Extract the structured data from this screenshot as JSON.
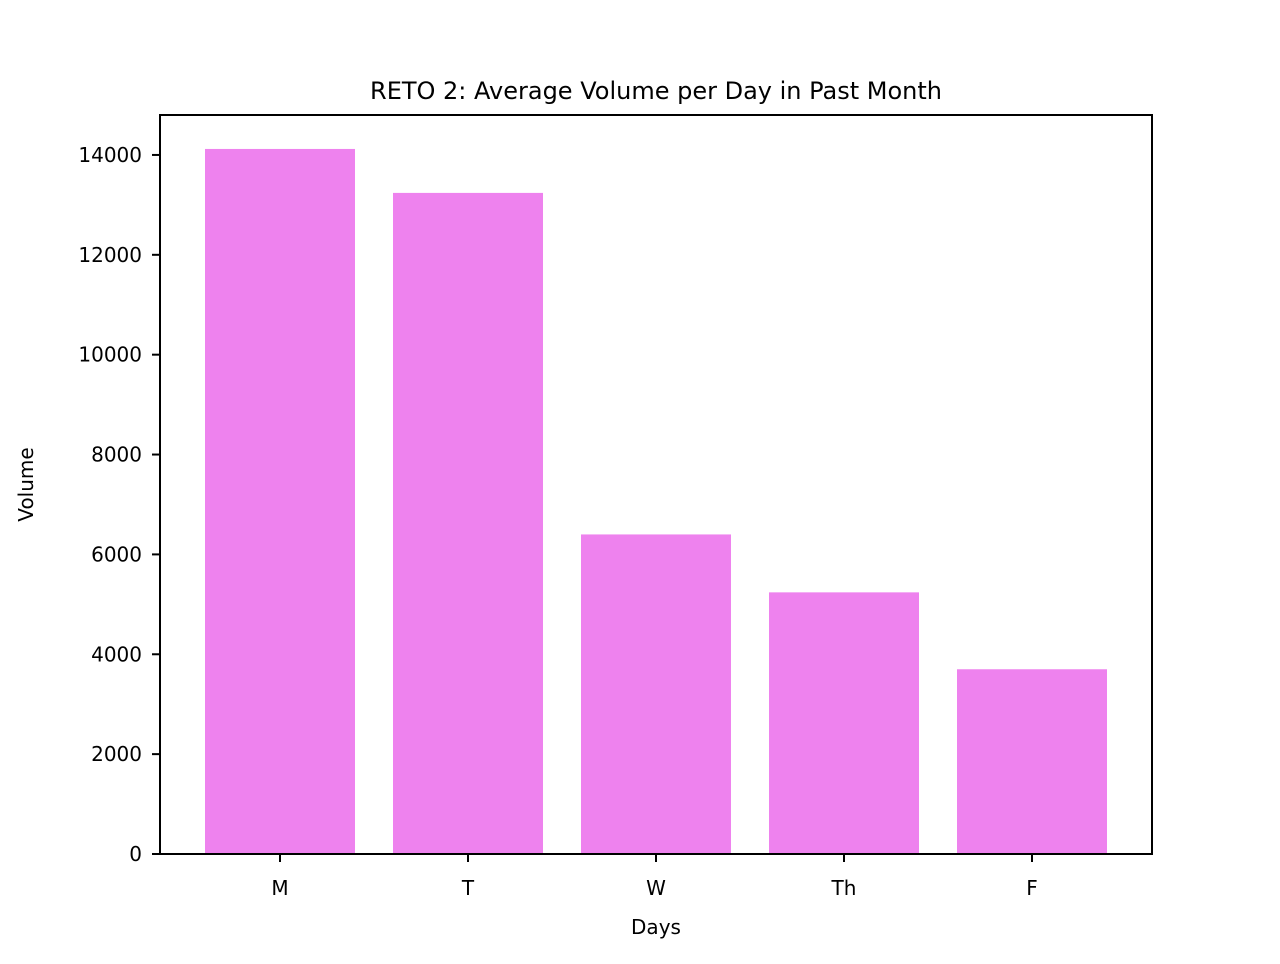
{
  "chart_data": {
    "type": "bar",
    "title": "RETO 2: Average Volume per Day in Past Month",
    "xlabel": "Days",
    "ylabel": "Volume",
    "categories": [
      "M",
      "T",
      "W",
      "Th",
      "F"
    ],
    "values": [
      14120,
      13240,
      6400,
      5240,
      3700
    ],
    "ylim": [
      0,
      14800
    ],
    "yticks": [
      0,
      2000,
      4000,
      6000,
      8000,
      10000,
      12000,
      14000
    ],
    "ytick_labels": [
      "0",
      "2000",
      "4000",
      "6000",
      "8000",
      "10000",
      "12000",
      "14000"
    ],
    "bar_color": "#ee82ee",
    "grid": false,
    "legend": "none"
  }
}
